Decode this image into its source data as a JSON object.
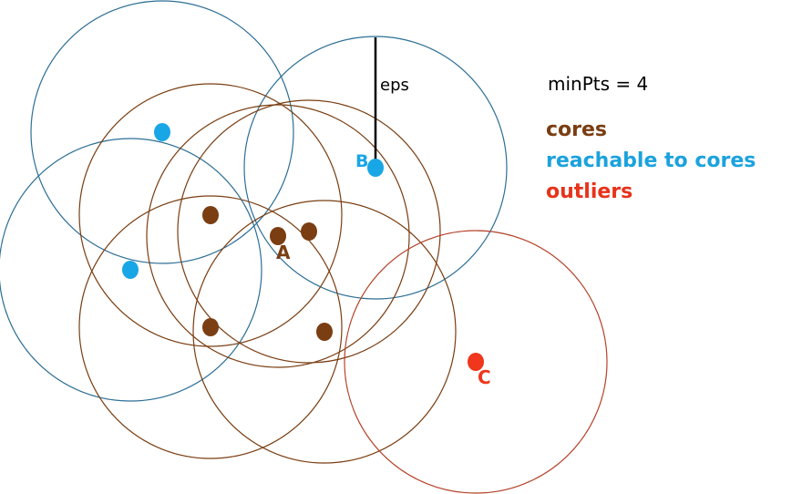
{
  "diagram": {
    "eps_label": "eps",
    "min_pts_label": "minPts = 4",
    "point_labels": {
      "a": "A",
      "b": "B",
      "c": "C"
    },
    "legend": [
      {
        "label": "cores",
        "color": "#7a3e12"
      },
      {
        "label": "reachable to cores",
        "color": "#1ba2dd"
      },
      {
        "label": "outliers",
        "color": "#e8321a"
      }
    ],
    "colors": {
      "core_circle": "#7a3e12",
      "reachable_circle": "#2e6f96",
      "outlier_circle": "#b5432a",
      "core_point": "#7a3e12",
      "reachable_point": "#19a6e6",
      "outlier_point": "#f0361c"
    }
  }
}
